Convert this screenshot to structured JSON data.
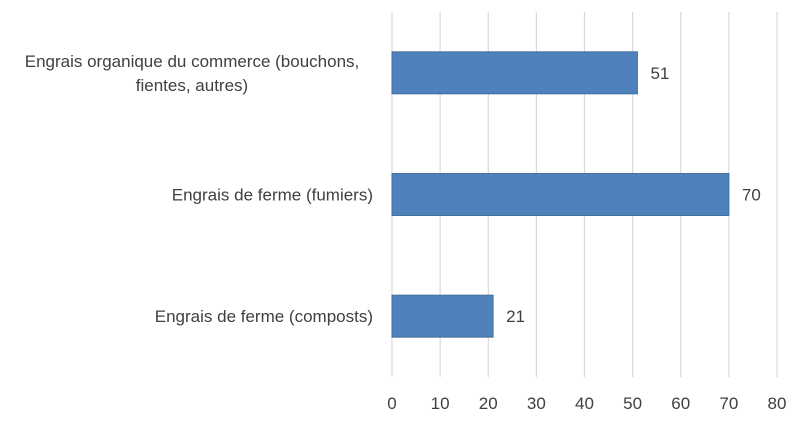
{
  "chart_data": {
    "type": "bar",
    "orientation": "horizontal",
    "categories": [
      [
        "Engrais organique du commerce (bouchons,",
        "fientes, autres)"
      ],
      [
        "Engrais de ferme (fumiers)"
      ],
      [
        "Engrais de ferme (composts)"
      ]
    ],
    "values": [
      51,
      70,
      21
    ],
    "data_labels": [
      "51",
      "70",
      "21"
    ],
    "x_ticks": [
      "0",
      "10",
      "20",
      "30",
      "40",
      "50",
      "60",
      "70",
      "80"
    ],
    "xlim": [
      0,
      80
    ],
    "grid": "vertical",
    "bar_color": "#4f81bd",
    "grid_color": "#d9d9d9",
    "title": "",
    "xlabel": "",
    "ylabel": ""
  }
}
